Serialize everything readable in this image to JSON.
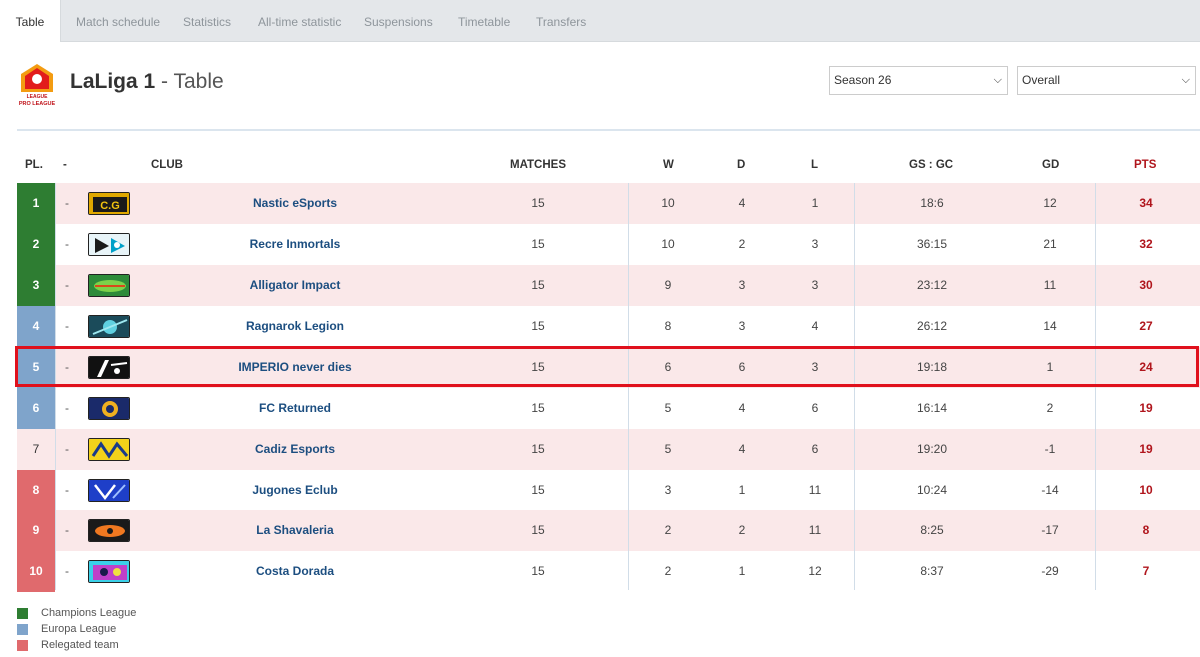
{
  "tabs": [
    "Table",
    "Match schedule",
    "Statistics",
    "All-time statistic",
    "Suspensions",
    "Timetable",
    "Transfers"
  ],
  "header": {
    "league": "LaLiga 1",
    "separator": " - ",
    "view": "Table",
    "season_select": "Season 26",
    "scope_select": "Overall"
  },
  "logo": {
    "text_top": "LEAGUE",
    "text_bottom": "PRO LEAGUE"
  },
  "columns": {
    "pos": "PL.",
    "change": "-",
    "club": "CLUB",
    "matches": "MATCHES",
    "w": "W",
    "d": "D",
    "l": "L",
    "goals": "GS : GC",
    "gd": "GD",
    "pts": "PTS"
  },
  "colors": {
    "champions": "#2e7d32",
    "europa": "#7fa4cb",
    "relegated": "#e06a6d",
    "highlight": "#e0101c"
  },
  "standings": [
    {
      "pos": "1",
      "change": "-",
      "club": "Nastic eSports",
      "matches": "15",
      "w": "10",
      "d": "4",
      "l": "1",
      "goals": "18:6",
      "gd": "12",
      "pts": "34",
      "zone": "champions"
    },
    {
      "pos": "2",
      "change": "-",
      "club": "Recre Inmortals",
      "matches": "15",
      "w": "10",
      "d": "2",
      "l": "3",
      "goals": "36:15",
      "gd": "21",
      "pts": "32",
      "zone": "champions"
    },
    {
      "pos": "3",
      "change": "-",
      "club": "Alligator Impact",
      "matches": "15",
      "w": "9",
      "d": "3",
      "l": "3",
      "goals": "23:12",
      "gd": "11",
      "pts": "30",
      "zone": "champions"
    },
    {
      "pos": "4",
      "change": "-",
      "club": "Ragnarok Legion",
      "matches": "15",
      "w": "8",
      "d": "3",
      "l": "4",
      "goals": "26:12",
      "gd": "14",
      "pts": "27",
      "zone": "europa"
    },
    {
      "pos": "5",
      "change": "-",
      "club": "IMPERIO never dies",
      "matches": "15",
      "w": "6",
      "d": "6",
      "l": "3",
      "goals": "19:18",
      "gd": "1",
      "pts": "24",
      "zone": "europa"
    },
    {
      "pos": "6",
      "change": "-",
      "club": "FC Returned",
      "matches": "15",
      "w": "5",
      "d": "4",
      "l": "6",
      "goals": "16:14",
      "gd": "2",
      "pts": "19",
      "zone": "europa"
    },
    {
      "pos": "7",
      "change": "-",
      "club": "Cadiz Esports",
      "matches": "15",
      "w": "5",
      "d": "4",
      "l": "6",
      "goals": "19:20",
      "gd": "-1",
      "pts": "19",
      "zone": "none"
    },
    {
      "pos": "8",
      "change": "-",
      "club": "Jugones Eclub",
      "matches": "15",
      "w": "3",
      "d": "1",
      "l": "11",
      "goals": "10:24",
      "gd": "-14",
      "pts": "10",
      "zone": "relegated"
    },
    {
      "pos": "9",
      "change": "-",
      "club": "La Shavaleria",
      "matches": "15",
      "w": "2",
      "d": "2",
      "l": "11",
      "goals": "8:25",
      "gd": "-17",
      "pts": "8",
      "zone": "relegated"
    },
    {
      "pos": "10",
      "change": "-",
      "club": "Costa Dorada",
      "matches": "15",
      "w": "2",
      "d": "1",
      "l": "12",
      "goals": "8:37",
      "gd": "-29",
      "pts": "7",
      "zone": "relegated"
    }
  ],
  "legend": [
    "Champions League",
    "Europa League",
    "Relegated team"
  ]
}
